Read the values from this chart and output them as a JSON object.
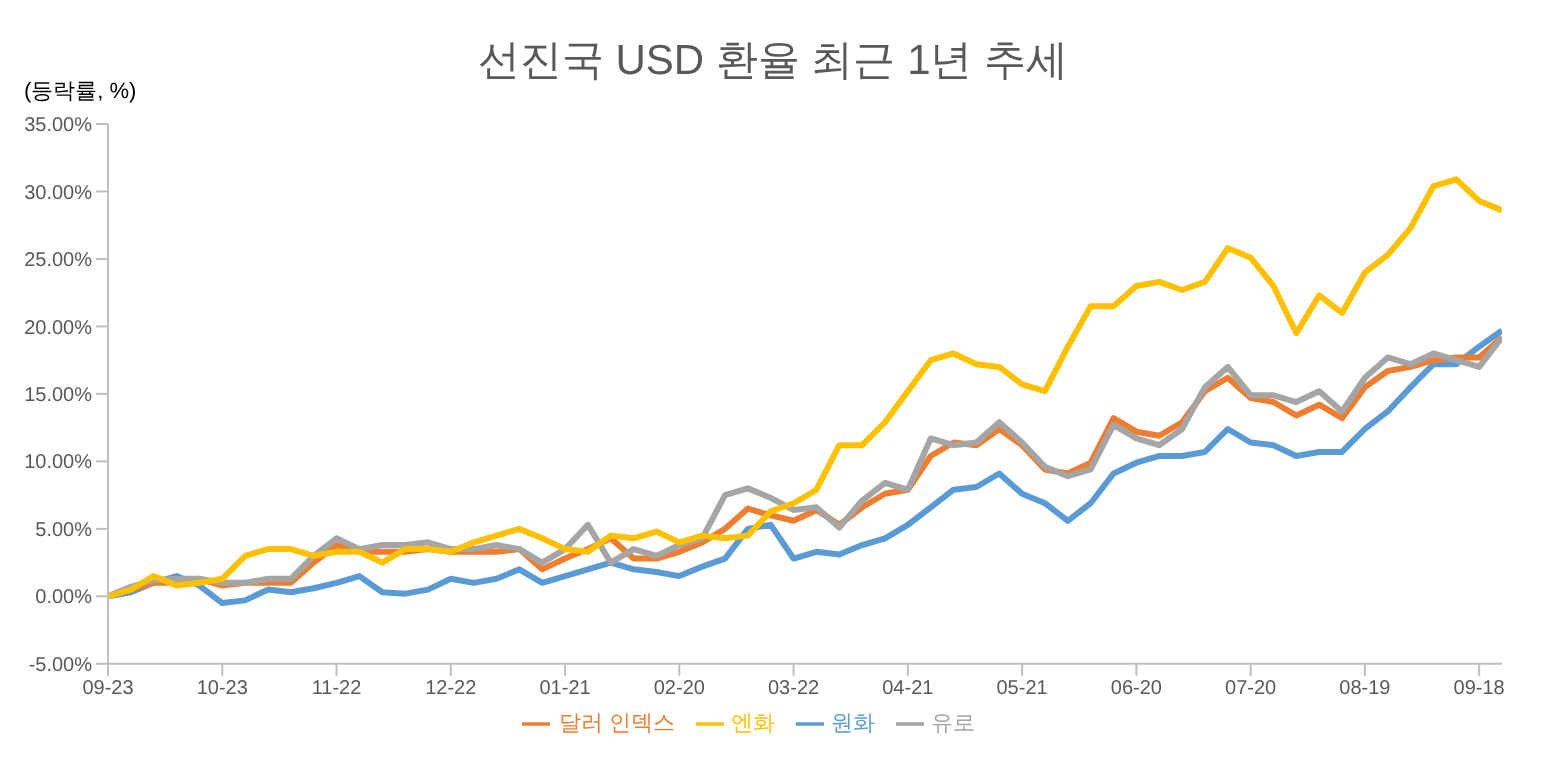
{
  "chart_data": {
    "type": "line",
    "title": "선진국  USD 환율  최근 1년 추세",
    "ylabel": "(등락률, %)",
    "categories": [
      "09-23",
      null,
      null,
      null,
      null,
      "10-23",
      null,
      null,
      null,
      null,
      "11-22",
      null,
      null,
      null,
      null,
      "12-22",
      null,
      null,
      null,
      null,
      "01-21",
      null,
      null,
      null,
      null,
      "02-20",
      null,
      null,
      null,
      null,
      "03-22",
      null,
      null,
      null,
      null,
      "04-21",
      null,
      null,
      null,
      null,
      "05-21",
      null,
      null,
      null,
      null,
      "06-20",
      null,
      null,
      null,
      null,
      "07-20",
      null,
      null,
      null,
      null,
      "08-19",
      null,
      null,
      null,
      null,
      "09-18",
      null
    ],
    "series": [
      {
        "name": "원화",
        "color": "#5b9bd5",
        "values": [
          0,
          0.3,
          1.0,
          1.5,
          0.8,
          -0.5,
          -0.3,
          0.5,
          0.3,
          0.6,
          1.0,
          1.5,
          0.3,
          0.2,
          0.5,
          1.3,
          1.0,
          1.3,
          2.0,
          1.0,
          1.5,
          2.0,
          2.5,
          2.0,
          1.8,
          1.5,
          2.2,
          2.8,
          5.0,
          5.3,
          2.8,
          3.3,
          3.1,
          3.8,
          4.3,
          5.3,
          6.6,
          7.9,
          8.1,
          9.1,
          7.6,
          6.9,
          5.6,
          6.9,
          9.1,
          9.9,
          10.4,
          10.4,
          10.7,
          12.4,
          11.4,
          11.2,
          10.4,
          10.7,
          10.7,
          12.4,
          13.7,
          15.5,
          17.2,
          17.2,
          18.5,
          19.7
        ]
      },
      {
        "name": "달러 인덱스",
        "color": "#ed7d31",
        "values": [
          0,
          0.5,
          1.0,
          1.0,
          1.3,
          0.8,
          1.0,
          1.0,
          1.0,
          2.5,
          3.8,
          3.3,
          3.3,
          3.3,
          3.5,
          3.3,
          3.3,
          3.3,
          3.5,
          2.0,
          2.8,
          3.5,
          4.3,
          2.8,
          2.8,
          3.3,
          4.0,
          5.0,
          6.5,
          6.0,
          5.6,
          6.4,
          5.3,
          6.6,
          7.6,
          7.9,
          10.4,
          11.4,
          11.2,
          12.4,
          11.2,
          9.4,
          9.1,
          9.9,
          13.2,
          12.2,
          11.9,
          12.9,
          15.2,
          16.2,
          14.7,
          14.4,
          13.4,
          14.2,
          13.2,
          15.5,
          16.7,
          17.0,
          17.5,
          17.7,
          17.7,
          19.2
        ]
      },
      {
        "name": "유로",
        "color": "#a5a5a5",
        "values": [
          0,
          0.7,
          1.2,
          1.3,
          1.3,
          1.0,
          1.0,
          1.3,
          1.3,
          3.0,
          4.3,
          3.5,
          3.8,
          3.8,
          4.0,
          3.5,
          3.5,
          3.8,
          3.5,
          2.5,
          3.5,
          5.3,
          2.5,
          3.5,
          3.0,
          3.8,
          4.3,
          7.5,
          8.0,
          7.3,
          6.4,
          6.6,
          5.1,
          7.1,
          8.4,
          7.9,
          11.7,
          11.2,
          11.4,
          12.9,
          11.4,
          9.6,
          8.9,
          9.4,
          12.7,
          11.7,
          11.2,
          12.4,
          15.5,
          17.0,
          14.9,
          14.9,
          14.4,
          15.2,
          13.7,
          16.2,
          17.7,
          17.2,
          18.0,
          17.5,
          17.0,
          19.2
        ]
      },
      {
        "name": "엔화",
        "color": "#ffc000",
        "values": [
          0,
          0.5,
          1.5,
          0.8,
          1.0,
          1.3,
          3.0,
          3.5,
          3.5,
          3.0,
          3.3,
          3.3,
          2.5,
          3.5,
          3.5,
          3.3,
          4.0,
          4.5,
          5.0,
          4.3,
          3.5,
          3.3,
          4.5,
          4.3,
          4.8,
          4.0,
          4.5,
          4.3,
          4.5,
          6.3,
          6.9,
          7.9,
          11.2,
          11.2,
          12.9,
          15.2,
          17.5,
          18.0,
          17.2,
          17.0,
          15.7,
          15.2,
          18.5,
          21.5,
          21.5,
          23.0,
          23.3,
          22.7,
          23.3,
          25.8,
          25.1,
          23.0,
          19.5,
          22.3,
          21.0,
          24.0,
          25.3,
          27.3,
          30.4,
          30.9,
          29.3,
          28.6
        ]
      }
    ],
    "ylim": [
      -5,
      35
    ],
    "yticks": [
      {
        "value": -5,
        "label": "-5.00%"
      },
      {
        "value": 0,
        "label": "0.00%"
      },
      {
        "value": 5,
        "label": "5.00%"
      },
      {
        "value": 10,
        "label": "10.00%"
      },
      {
        "value": 15,
        "label": "15.00%"
      },
      {
        "value": 20,
        "label": "20.00%"
      },
      {
        "value": 25,
        "label": "25.00%"
      },
      {
        "value": 30,
        "label": "30.00%"
      },
      {
        "value": 35,
        "label": "35.00%"
      }
    ],
    "grid": false,
    "legend": "bottom",
    "marker": "none",
    "line_style": "solid"
  }
}
